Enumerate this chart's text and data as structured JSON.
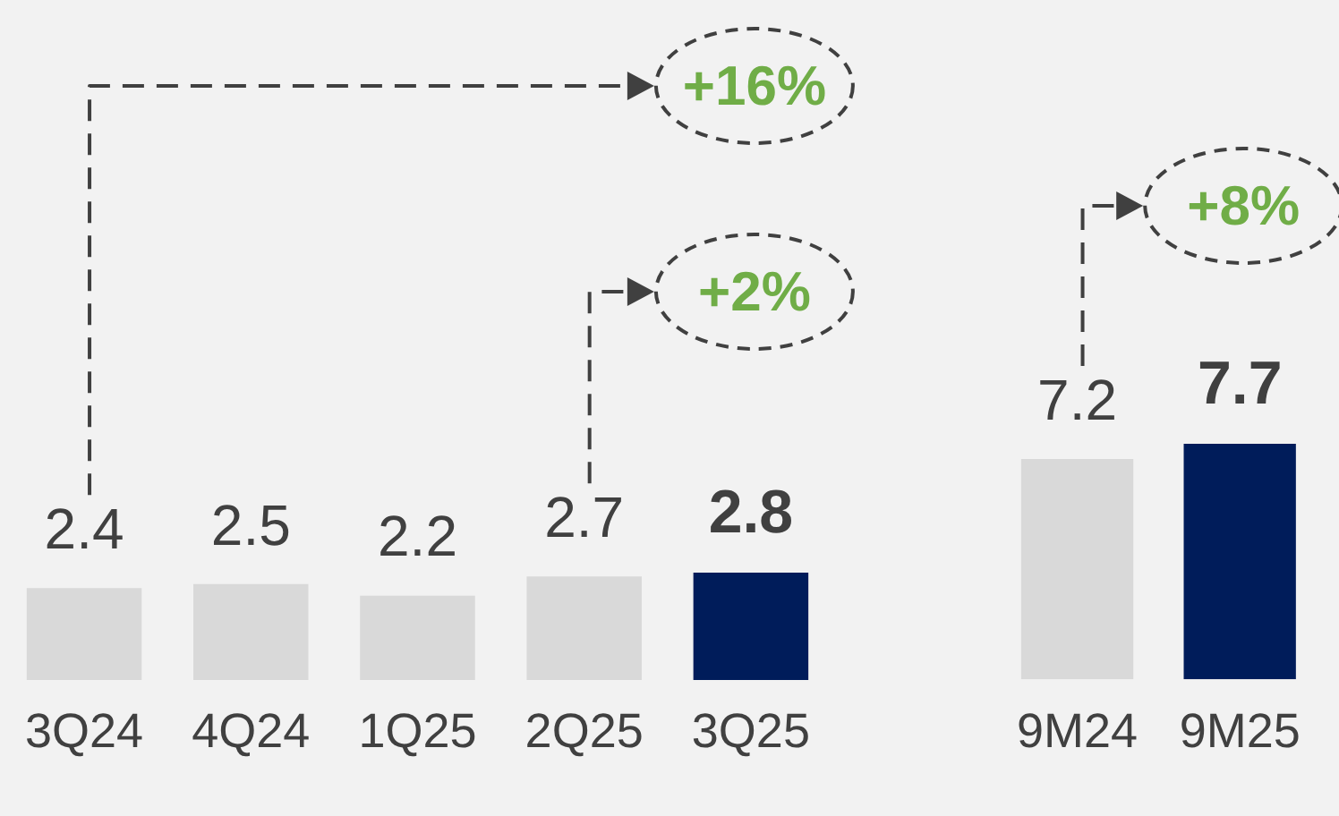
{
  "chart_data": [
    {
      "type": "bar",
      "categories": [
        "3Q24",
        "4Q24",
        "1Q25",
        "2Q25",
        "3Q25"
      ],
      "values": [
        2.4,
        2.5,
        2.2,
        2.7,
        2.8
      ],
      "colors": [
        "#d9d9d9",
        "#d9d9d9",
        "#d9d9d9",
        "#d9d9d9",
        "#001c5a"
      ],
      "data_labels": true,
      "annotations": [
        "+16%",
        "+2%"
      ]
    },
    {
      "type": "bar",
      "categories": [
        "9M24",
        "9M25"
      ],
      "values": [
        7.2,
        7.7
      ],
      "colors": [
        "#d9d9d9",
        "#001c5a"
      ],
      "data_labels": true,
      "annotations": [
        "+8%"
      ]
    }
  ]
}
